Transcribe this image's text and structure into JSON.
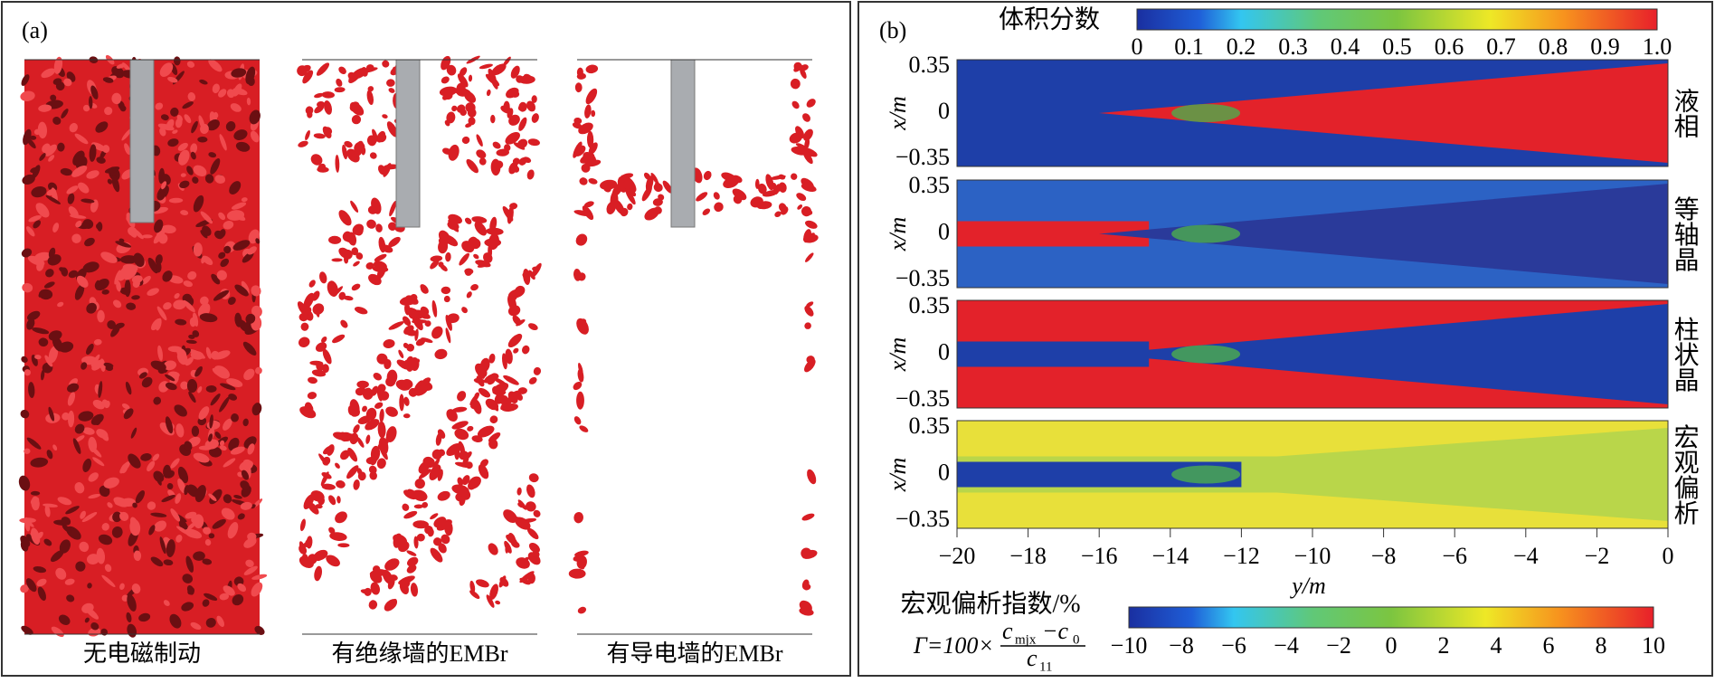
{
  "panel_a": {
    "label": "(a)",
    "captions": [
      "无电磁制动",
      "有绝缘墙的EMBr",
      "有导电墙的EMBr"
    ]
  },
  "panel_b": {
    "label": "(b)",
    "colorbar_top": {
      "title": "体积分数",
      "ticks": [
        "0",
        "0.1",
        "0.2",
        "0.3",
        "0.4",
        "0.5",
        "0.6",
        "0.7",
        "0.8",
        "0.9",
        "1.0"
      ]
    },
    "row_labels": [
      "液相",
      "等轴晶",
      "柱状晶",
      "宏观偏析"
    ],
    "y_axis_label": "x/m",
    "y_ticks": [
      "0.35",
      "0",
      "−0.35"
    ],
    "x_axis_label": "y/m",
    "x_ticks": [
      "−20",
      "−18",
      "−16",
      "−14",
      "−12",
      "−10",
      "−8",
      "−6",
      "−4",
      "−2",
      "0"
    ],
    "colorbar_bottom": {
      "title": "宏观偏析指数/%",
      "formula": {
        "prefix": "Γ=100×",
        "numerator_c": "c",
        "numerator_sub": "mjx",
        "numerator_minus": "−c",
        "numerator_sub0": "0",
        "denominator_c": "c",
        "denominator_sub": "11"
      },
      "ticks": [
        "−10",
        "−8",
        "−6",
        "−4",
        "−2",
        "0",
        "2",
        "4",
        "6",
        "8",
        "10"
      ]
    }
  }
}
